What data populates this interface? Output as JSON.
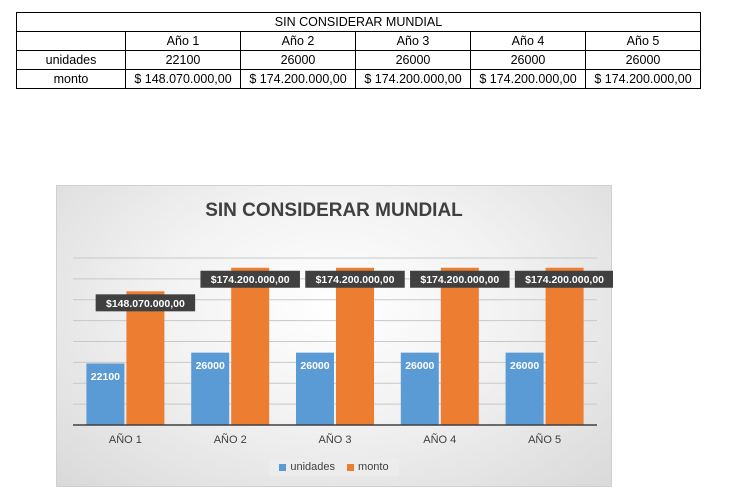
{
  "table": {
    "title": "SIN CONSIDERAR MUNDIAL",
    "headers": [
      "",
      "Año 1",
      "Año 2",
      "Año 3",
      "Año 4",
      "Año 5"
    ],
    "rows": [
      {
        "label": "unidades",
        "cells": [
          "22100",
          "26000",
          "26000",
          "26000",
          "26000"
        ]
      },
      {
        "label": "monto",
        "cells": [
          "$ 148.070.000,00",
          "$ 174.200.000,00",
          "$ 174.200.000,00",
          "$ 174.200.000,00",
          "$ 174.200.000,00"
        ]
      }
    ]
  },
  "chart_data": {
    "type": "bar",
    "title": "SIN CONSIDERAR MUNDIAL",
    "categories": [
      "AÑO 1",
      "AÑO 2",
      "AÑO 3",
      "AÑO 4",
      "AÑO 5"
    ],
    "series": [
      {
        "name": "unidades",
        "values": [
          22100,
          26000,
          26000,
          26000,
          26000
        ],
        "labels": [
          "22100",
          "26000",
          "26000",
          "26000",
          "26000"
        ],
        "color": "#5B9BD5"
      },
      {
        "name": "monto",
        "values": [
          148070000,
          174200000,
          174200000,
          174200000,
          174200000
        ],
        "labels": [
          "$148.070.000,00",
          "$174.200.000,00",
          "$174.200.000,00",
          "$174.200.000,00",
          "$174.200.000,00"
        ],
        "color": "#ED7D31"
      }
    ],
    "grid": true,
    "legend_position": "bottom",
    "data_label_background": "#404040"
  }
}
